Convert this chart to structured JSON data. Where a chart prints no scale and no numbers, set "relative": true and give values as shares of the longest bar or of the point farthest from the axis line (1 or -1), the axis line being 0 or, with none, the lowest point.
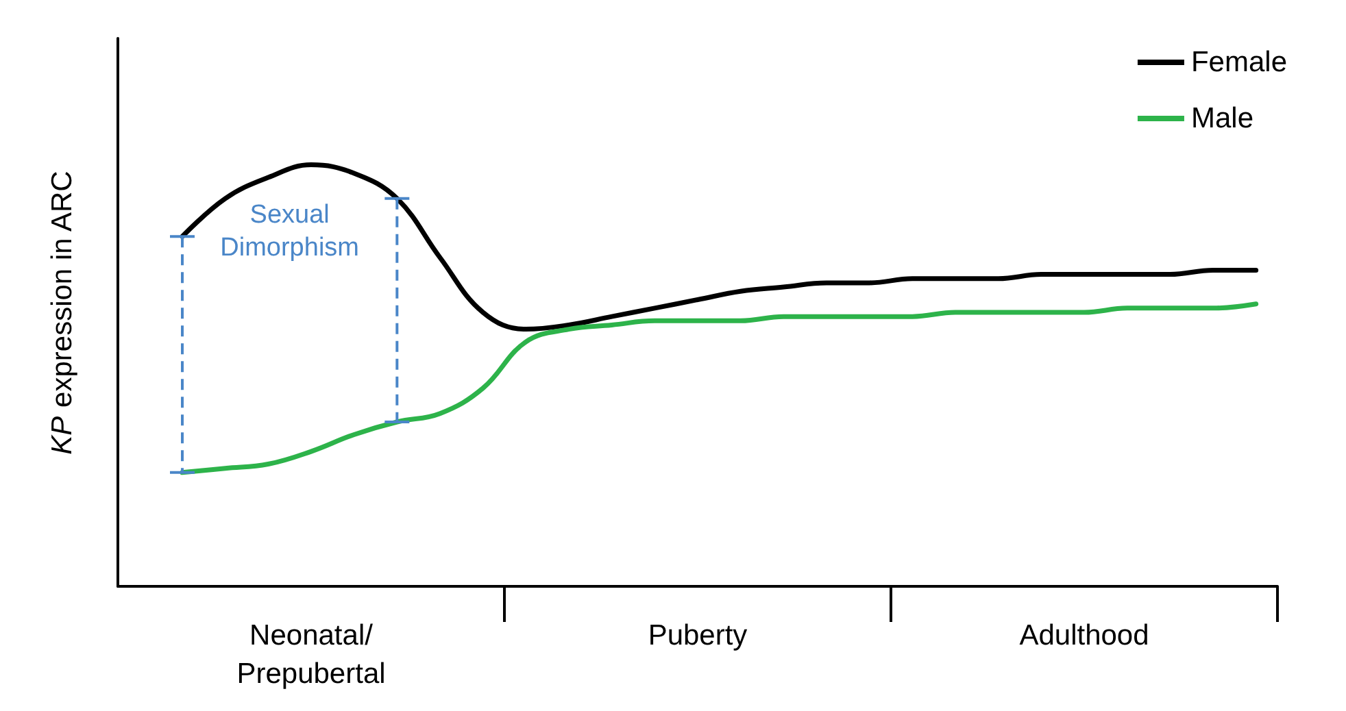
{
  "chart_data": {
    "type": "line",
    "relative": true,
    "ylabel": "KP expression in ARC",
    "categories": [
      null,
      null,
      null,
      null,
      "Neonatal/\nPrepubertal",
      null,
      null,
      null,
      null,
      null,
      null,
      null,
      null,
      "Puberty",
      null,
      null,
      null,
      null,
      null,
      null,
      null,
      null,
      "Adulthood",
      null,
      null,
      null,
      null
    ],
    "legend": "top right",
    "marker": "none",
    "line_style": "solid",
    "grid": false,
    "annotations": [
      "Sexual\nDimorphism"
    ],
    "series": [
      {
        "name": "Female",
        "color": "#000000",
        "values": [
          null,
          0.83,
          0.92,
          0.97,
          1.0,
          0.98,
          0.92,
          0.78,
          0.65,
          0.61,
          0.62,
          0.64,
          0.66,
          0.68,
          0.7,
          0.71,
          0.72,
          0.72,
          0.73,
          0.73,
          0.73,
          0.74,
          0.74,
          0.74,
          0.74,
          0.75,
          0.75
        ]
      },
      {
        "name": "Male",
        "color": "#2db34a",
        "values": [
          null,
          0.27,
          0.28,
          0.29,
          0.32,
          0.36,
          0.39,
          0.41,
          0.47,
          0.58,
          0.61,
          0.62,
          0.63,
          0.63,
          0.63,
          0.64,
          0.64,
          0.64,
          0.64,
          0.65,
          0.65,
          0.65,
          0.65,
          0.66,
          0.66,
          0.66,
          0.67
        ]
      }
    ]
  }
}
